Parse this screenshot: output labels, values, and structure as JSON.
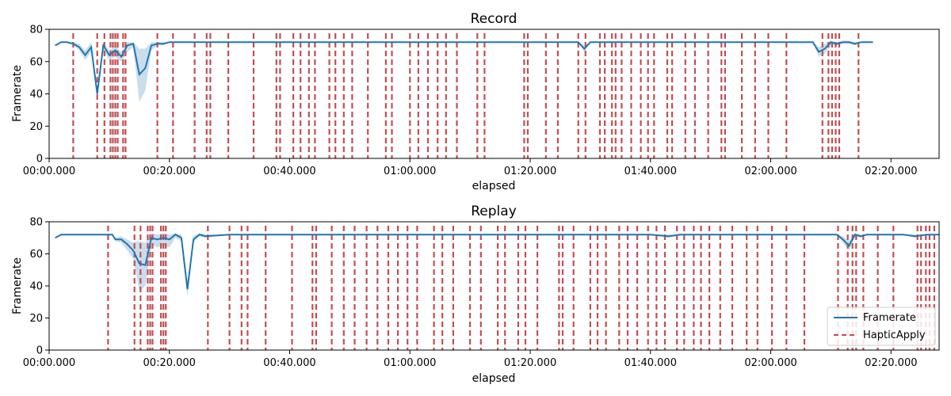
{
  "chart_data": [
    {
      "type": "line",
      "title": "Record",
      "xlabel": "elapsed",
      "ylabel": "Framerate",
      "xlim": [
        0,
        148
      ],
      "ylim": [
        0,
        80
      ],
      "x_tick_labels": [
        "00:00.000",
        "00:20.000",
        "00:40.000",
        "01:00.000",
        "01:20.000",
        "01:40.000",
        "02:00.000",
        "02:20.000"
      ],
      "x_tick_values": [
        0,
        20,
        40,
        60,
        80,
        100,
        120,
        140
      ],
      "y_tick_values": [
        0,
        20,
        40,
        60,
        80
      ],
      "grid": false,
      "legend": null,
      "series": [
        {
          "name": "Framerate",
          "color": "#1f77b4",
          "band_color": "#a6c6e0",
          "x": [
            1,
            2,
            3,
            4,
            5,
            6,
            7,
            8,
            9,
            10,
            11,
            12,
            13,
            14,
            15,
            16,
            17,
            18,
            19,
            20,
            25,
            30,
            35,
            40,
            45,
            50,
            55,
            60,
            65,
            70,
            75,
            80,
            85,
            88,
            89,
            90,
            95,
            100,
            105,
            110,
            115,
            120,
            125,
            127,
            128,
            129,
            130,
            131,
            132,
            133,
            134,
            135,
            137
          ],
          "y": [
            70,
            72,
            72,
            71,
            69,
            64,
            69,
            40,
            70,
            64,
            67,
            63,
            70,
            71,
            52,
            56,
            70,
            71,
            71,
            72,
            72,
            72,
            72,
            72,
            72,
            72,
            72,
            72,
            72,
            72,
            72,
            72,
            72,
            72,
            68,
            72,
            72,
            72,
            72,
            72,
            72,
            72,
            72,
            72,
            66,
            68,
            72,
            71,
            72,
            72,
            71,
            72,
            72
          ],
          "lower": [
            70,
            72,
            72,
            70,
            67,
            61,
            66,
            40,
            67,
            61,
            63,
            60,
            66,
            69,
            35,
            42,
            67,
            70,
            70,
            72,
            72,
            72,
            72,
            72,
            72,
            72,
            72,
            72,
            72,
            72,
            72,
            72,
            72,
            72,
            66,
            72,
            72,
            72,
            72,
            72,
            72,
            72,
            72,
            72,
            63,
            65,
            70,
            70,
            71,
            71,
            70,
            72,
            72
          ],
          "upper": [
            70,
            72,
            72,
            72,
            71,
            67,
            72,
            40,
            72,
            67,
            70,
            66,
            72,
            72,
            68,
            68,
            72,
            72,
            72,
            72,
            72,
            72,
            72,
            72,
            72,
            72,
            72,
            72,
            72,
            72,
            72,
            72,
            72,
            72,
            70,
            72,
            72,
            72,
            72,
            72,
            72,
            72,
            72,
            72,
            69,
            71,
            73,
            72,
            73,
            73,
            72,
            72,
            72
          ]
        },
        {
          "name": "HapticApply",
          "color": "#c44e52",
          "style": "dashed-vline",
          "x": [
            4,
            8,
            9.2,
            10.2,
            10.6,
            11,
            11.4,
            12.3,
            12.7,
            18,
            20.6,
            24.2,
            26.2,
            26.8,
            29.8,
            34,
            37.8,
            38.4,
            40.6,
            41.8,
            43.2,
            44.2,
            46.6,
            47.6,
            49,
            50.4,
            53,
            56,
            57,
            60,
            61.4,
            63,
            64.6,
            66,
            67.8,
            71.2,
            72.4,
            79,
            79.6,
            82.6,
            84.6,
            88,
            89.2,
            91.6,
            92.4,
            93.6,
            94.2,
            95.2,
            96.8,
            98.4,
            99.6,
            100.6,
            102.8,
            103.6,
            105.8,
            107.4,
            109.6,
            111.8,
            112.4,
            115.2,
            117.4,
            119.6,
            122.6,
            128.6,
            129.6,
            130.2,
            130.8,
            131.4,
            134.6
          ]
        }
      ]
    },
    {
      "type": "line",
      "title": "Replay",
      "xlabel": "elapsed",
      "ylabel": "Framerate",
      "xlim": [
        0,
        148
      ],
      "ylim": [
        0,
        80
      ],
      "x_tick_labels": [
        "00:00.000",
        "00:20.000",
        "00:40.000",
        "01:00.000",
        "01:20.000",
        "01:40.000",
        "02:00.000",
        "02:20.000"
      ],
      "x_tick_values": [
        0,
        20,
        40,
        60,
        80,
        100,
        120,
        140
      ],
      "y_tick_values": [
        0,
        20,
        40,
        60,
        80
      ],
      "grid": false,
      "legend": "lower-right",
      "series": [
        {
          "name": "Framerate",
          "color": "#1f77b4",
          "band_color": "#a6c6e0",
          "x": [
            1,
            2,
            5,
            8,
            9,
            10,
            10.5,
            11,
            12,
            13,
            14,
            15,
            16,
            17,
            18,
            19,
            20,
            21,
            22,
            23,
            24,
            25,
            26,
            30,
            40,
            50,
            60,
            70,
            80,
            90,
            100,
            103,
            105,
            110,
            120,
            130,
            131,
            132,
            133,
            134,
            135,
            136,
            140,
            142,
            144,
            146,
            148
          ],
          "y": [
            70,
            72,
            72,
            72,
            72,
            72,
            72,
            69,
            69,
            66,
            62,
            54,
            53,
            70,
            69,
            70,
            69,
            72,
            70,
            38,
            69,
            72,
            71,
            72,
            72,
            72,
            72,
            72,
            72,
            72,
            72,
            71,
            72,
            72,
            72,
            72,
            72,
            69,
            65,
            72,
            71,
            72,
            72,
            72,
            71,
            72,
            72
          ],
          "lower": [
            70,
            72,
            72,
            72,
            72,
            72,
            72,
            68,
            67,
            62,
            57,
            37,
            40,
            66,
            64,
            65,
            64,
            70,
            68,
            33,
            67,
            71,
            70,
            72,
            72,
            72,
            72,
            72,
            72,
            72,
            72,
            70,
            72,
            72,
            72,
            72,
            72,
            67,
            62,
            70,
            70,
            72,
            72,
            72,
            70,
            72,
            72
          ],
          "upper": [
            70,
            72,
            72,
            72,
            72,
            72,
            72,
            70,
            71,
            69,
            67,
            68,
            67,
            73,
            72,
            73,
            72,
            73,
            72,
            43,
            71,
            73,
            72,
            72,
            72,
            72,
            72,
            72,
            72,
            72,
            72,
            72,
            72,
            72,
            72,
            72,
            72,
            71,
            68,
            73,
            72,
            72,
            72,
            72,
            72,
            72,
            72
          ]
        },
        {
          "name": "HapticApply",
          "color": "#c44e52",
          "style": "dashed-vline",
          "x": [
            9.8,
            14.2,
            15.2,
            16.4,
            16.8,
            17.2,
            18.6,
            19,
            19.4,
            26.4,
            30,
            32,
            33,
            36,
            40.4,
            43.8,
            44.4,
            47,
            49,
            50.8,
            52.8,
            54.6,
            56.4,
            58,
            59.6,
            61.2,
            64,
            65.4,
            67.2,
            70,
            71.8,
            74.6,
            75.8,
            78,
            79.2,
            81.2,
            84.8,
            85.4,
            87.2,
            90,
            91.2,
            92.6,
            94.8,
            96.2,
            97.8,
            99.6,
            101,
            102.4,
            104.4,
            105.6,
            107.2,
            108.4,
            109.8,
            111.6,
            113.6,
            116,
            117.8,
            120.2,
            122.6,
            125.6,
            131.2,
            132.8,
            133.6,
            134.2,
            135.4,
            137.8,
            140.4,
            144.4,
            145,
            145.8,
            146.4,
            147.2
          ]
        }
      ]
    }
  ]
}
